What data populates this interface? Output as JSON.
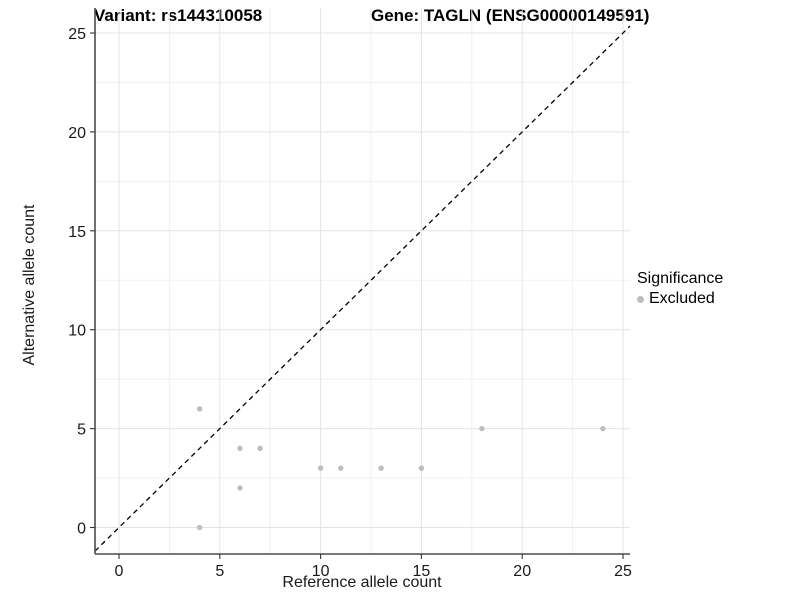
{
  "chart_data": {
    "type": "scatter",
    "title_left": "Variant: rs144310058",
    "title_right": "Gene: TAGLN (ENSG00000149591)",
    "xlabel": "Reference allele count",
    "ylabel": "Alternative allele count",
    "xlim": [
      0,
      25
    ],
    "ylim": [
      0,
      25
    ],
    "x_ticks": [
      0,
      5,
      10,
      15,
      20,
      25
    ],
    "y_ticks": [
      0,
      5,
      10,
      15,
      20,
      25
    ],
    "minor_ticks": [
      2.5,
      7.5,
      12.5,
      17.5,
      22.5
    ],
    "grid": "major+minor",
    "reference_line": {
      "kind": "identity y=x",
      "style": "dashed",
      "color": "#000000"
    },
    "legend": {
      "title": "Significance",
      "position": "right",
      "items": [
        {
          "label": "Excluded",
          "color": "#bdbdbd"
        }
      ]
    },
    "series": [
      {
        "name": "Excluded",
        "color": "#bdbdbd",
        "points": [
          [
            4,
            0
          ],
          [
            4,
            6
          ],
          [
            6,
            2
          ],
          [
            6,
            4
          ],
          [
            7,
            4
          ],
          [
            10,
            3
          ],
          [
            11,
            3
          ],
          [
            13,
            3
          ],
          [
            15,
            3
          ],
          [
            18,
            5
          ],
          [
            24,
            5
          ]
        ]
      }
    ]
  },
  "colors": {
    "background": "#ffffff",
    "grid_major": "#e4e4e4",
    "grid_minor": "#f1f1f1",
    "axis_line": "#4d4d4d",
    "tick_mark": "#333333",
    "point": "#bdbdbd",
    "dashed_line": "#000000"
  }
}
